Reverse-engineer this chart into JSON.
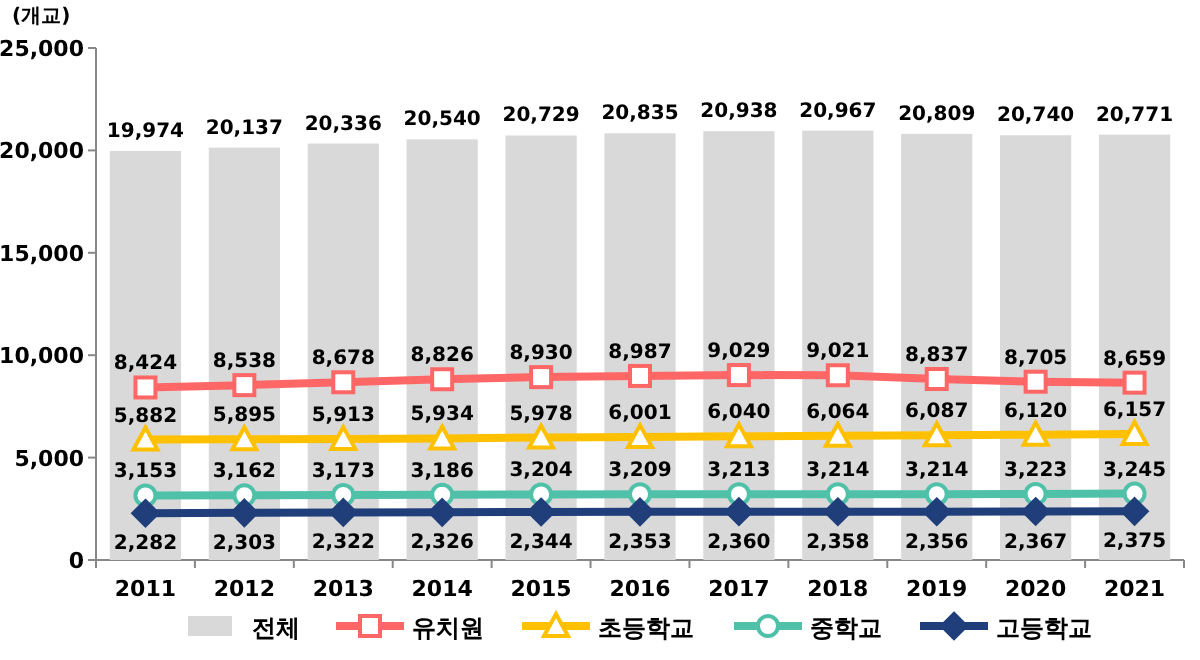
{
  "chart_data": {
    "type": "bar",
    "ylabel": "(개교)",
    "categories": [
      "2011",
      "2012",
      "2013",
      "2014",
      "2015",
      "2016",
      "2017",
      "2018",
      "2019",
      "2020",
      "2021"
    ],
    "ylim": [
      0,
      25000
    ],
    "yticks": [
      {
        "value": 0,
        "label": "0"
      },
      {
        "value": 5000,
        "label": "5,000"
      },
      {
        "value": 10000,
        "label": "10,000"
      },
      {
        "value": 15000,
        "label": "15,000"
      },
      {
        "value": 20000,
        "label": "20,000"
      },
      {
        "value": 25000,
        "label": "25,000"
      }
    ],
    "legend": "bottom",
    "series": [
      {
        "name": "전체",
        "color": "#d9d9d9",
        "values": [
          19974,
          20137,
          20336,
          20540,
          20729,
          20835,
          20938,
          20967,
          20809,
          20740,
          20771
        ],
        "value_labels": [
          "19,974",
          "20,137",
          "20,336",
          "20,540",
          "20,729",
          "20,835",
          "20,938",
          "20,967",
          "20,809",
          "20,740",
          "20,771"
        ]
      },
      {
        "name": "유치원",
        "type": "line",
        "marker": "square",
        "color": "#ff6666",
        "values": [
          8424,
          8538,
          8678,
          8826,
          8930,
          8987,
          9029,
          9021,
          8837,
          8705,
          8659
        ],
        "value_labels": [
          "8,424",
          "8,538",
          "8,678",
          "8,826",
          "8,930",
          "8,987",
          "9,029",
          "9,021",
          "8,837",
          "8,705",
          "8,659"
        ]
      },
      {
        "name": "초등학교",
        "type": "line",
        "marker": "triangle",
        "color": "#ffc000",
        "values": [
          5882,
          5895,
          5913,
          5934,
          5978,
          6001,
          6040,
          6064,
          6087,
          6120,
          6157
        ],
        "value_labels": [
          "5,882",
          "5,895",
          "5,913",
          "5,934",
          "5,978",
          "6,001",
          "6,040",
          "6,064",
          "6,087",
          "6,120",
          "6,157"
        ]
      },
      {
        "name": "중학교",
        "type": "line",
        "marker": "circle",
        "color": "#4fc1a9",
        "values": [
          3153,
          3162,
          3173,
          3186,
          3204,
          3209,
          3213,
          3214,
          3214,
          3223,
          3245
        ],
        "value_labels": [
          "3,153",
          "3,162",
          "3,173",
          "3,186",
          "3,204",
          "3,209",
          "3,213",
          "3,214",
          "3,214",
          "3,223",
          "3,245"
        ]
      },
      {
        "name": "고등학교",
        "type": "line",
        "marker": "diamond",
        "color": "#1f3e7a",
        "values": [
          2282,
          2303,
          2322,
          2326,
          2344,
          2353,
          2360,
          2358,
          2356,
          2367,
          2375
        ],
        "value_labels": [
          "2,282",
          "2,303",
          "2,322",
          "2,326",
          "2,344",
          "2,353",
          "2,360",
          "2,358",
          "2,356",
          "2,367",
          "2,375"
        ]
      }
    ]
  }
}
